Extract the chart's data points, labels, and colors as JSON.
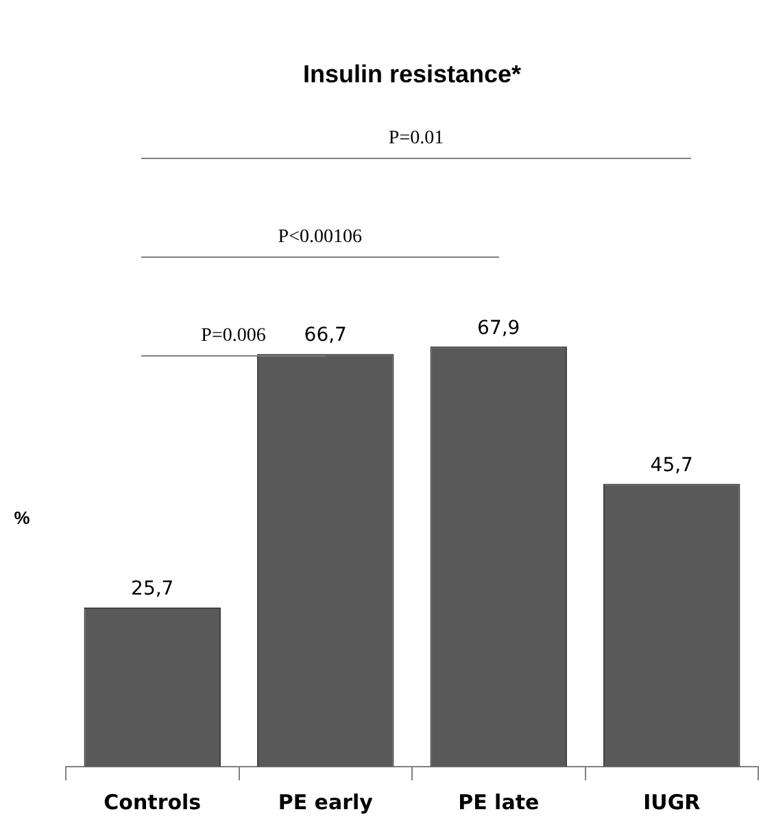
{
  "chart_data": {
    "type": "bar",
    "title": "Insulin resistance*",
    "ylabel": "%",
    "categories": [
      "Controls",
      "PE early",
      "PE late",
      "IUGR"
    ],
    "values": [
      25.7,
      66.7,
      67.9,
      45.7
    ],
    "value_labels": [
      "25,7",
      "66,7",
      "67,9",
      "45,7"
    ],
    "color": "#595959",
    "annotations": [
      "P=0.01",
      "P<0.00106",
      "P=0.006"
    ],
    "grid": false,
    "legend": false
  }
}
